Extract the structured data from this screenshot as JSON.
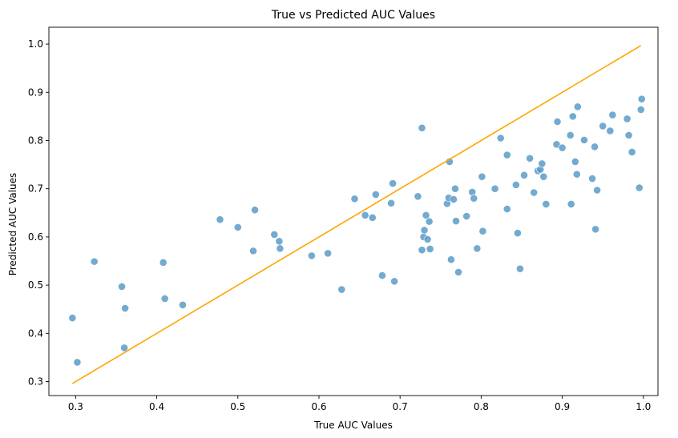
{
  "chart_data": {
    "type": "scatter",
    "title": "True vs Predicted AUC Values",
    "xlabel": "True AUC Values",
    "ylabel": "Predicted AUC Values",
    "xlim": [
      0.267,
      1.018
    ],
    "ylim": [
      0.271,
      1.035
    ],
    "xticks": [
      0.3,
      0.4,
      0.5,
      0.6,
      0.7,
      0.8,
      0.9,
      1.0
    ],
    "yticks": [
      0.3,
      0.4,
      0.5,
      0.6,
      0.7,
      0.8,
      0.9,
      1.0
    ],
    "xtick_labels": [
      "0.3",
      "0.4",
      "0.5",
      "0.6",
      "0.7",
      "0.8",
      "0.9",
      "1.0"
    ],
    "ytick_labels": [
      "0.3",
      "0.4",
      "0.5",
      "0.6",
      "0.7",
      "0.8",
      "0.9",
      "1.0"
    ],
    "grid": false,
    "point_color": "#5b9bc8",
    "line_color": "#ffa500",
    "reference_line": {
      "x": [
        0.296,
        0.997
      ],
      "y": [
        0.296,
        0.997
      ]
    },
    "points": [
      {
        "x": 0.296,
        "y": 0.432
      },
      {
        "x": 0.302,
        "y": 0.34
      },
      {
        "x": 0.323,
        "y": 0.549
      },
      {
        "x": 0.357,
        "y": 0.497
      },
      {
        "x": 0.36,
        "y": 0.37
      },
      {
        "x": 0.361,
        "y": 0.452
      },
      {
        "x": 0.408,
        "y": 0.547
      },
      {
        "x": 0.41,
        "y": 0.472
      },
      {
        "x": 0.432,
        "y": 0.459
      },
      {
        "x": 0.478,
        "y": 0.636
      },
      {
        "x": 0.5,
        "y": 0.62
      },
      {
        "x": 0.519,
        "y": 0.571
      },
      {
        "x": 0.521,
        "y": 0.656
      },
      {
        "x": 0.545,
        "y": 0.605
      },
      {
        "x": 0.551,
        "y": 0.591
      },
      {
        "x": 0.552,
        "y": 0.576
      },
      {
        "x": 0.591,
        "y": 0.561
      },
      {
        "x": 0.611,
        "y": 0.566
      },
      {
        "x": 0.628,
        "y": 0.491
      },
      {
        "x": 0.644,
        "y": 0.679
      },
      {
        "x": 0.657,
        "y": 0.645
      },
      {
        "x": 0.666,
        "y": 0.64
      },
      {
        "x": 0.67,
        "y": 0.688
      },
      {
        "x": 0.678,
        "y": 0.52
      },
      {
        "x": 0.689,
        "y": 0.67
      },
      {
        "x": 0.691,
        "y": 0.711
      },
      {
        "x": 0.693,
        "y": 0.508
      },
      {
        "x": 0.722,
        "y": 0.684
      },
      {
        "x": 0.727,
        "y": 0.573
      },
      {
        "x": 0.727,
        "y": 0.826
      },
      {
        "x": 0.729,
        "y": 0.6
      },
      {
        "x": 0.73,
        "y": 0.614
      },
      {
        "x": 0.732,
        "y": 0.645
      },
      {
        "x": 0.734,
        "y": 0.595
      },
      {
        "x": 0.736,
        "y": 0.632
      },
      {
        "x": 0.737,
        "y": 0.575
      },
      {
        "x": 0.758,
        "y": 0.669
      },
      {
        "x": 0.76,
        "y": 0.681
      },
      {
        "x": 0.761,
        "y": 0.756
      },
      {
        "x": 0.763,
        "y": 0.553
      },
      {
        "x": 0.766,
        "y": 0.678
      },
      {
        "x": 0.768,
        "y": 0.7
      },
      {
        "x": 0.769,
        "y": 0.633
      },
      {
        "x": 0.772,
        "y": 0.527
      },
      {
        "x": 0.782,
        "y": 0.643
      },
      {
        "x": 0.789,
        "y": 0.693
      },
      {
        "x": 0.791,
        "y": 0.68
      },
      {
        "x": 0.795,
        "y": 0.576
      },
      {
        "x": 0.801,
        "y": 0.725
      },
      {
        "x": 0.802,
        "y": 0.612
      },
      {
        "x": 0.817,
        "y": 0.7
      },
      {
        "x": 0.824,
        "y": 0.805
      },
      {
        "x": 0.832,
        "y": 0.77
      },
      {
        "x": 0.832,
        "y": 0.658
      },
      {
        "x": 0.843,
        "y": 0.708
      },
      {
        "x": 0.845,
        "y": 0.608
      },
      {
        "x": 0.848,
        "y": 0.534
      },
      {
        "x": 0.853,
        "y": 0.728
      },
      {
        "x": 0.86,
        "y": 0.763
      },
      {
        "x": 0.865,
        "y": 0.692
      },
      {
        "x": 0.87,
        "y": 0.737
      },
      {
        "x": 0.873,
        "y": 0.74
      },
      {
        "x": 0.875,
        "y": 0.752
      },
      {
        "x": 0.877,
        "y": 0.725
      },
      {
        "x": 0.88,
        "y": 0.668
      },
      {
        "x": 0.893,
        "y": 0.792
      },
      {
        "x": 0.894,
        "y": 0.839
      },
      {
        "x": 0.9,
        "y": 0.785
      },
      {
        "x": 0.91,
        "y": 0.811
      },
      {
        "x": 0.911,
        "y": 0.668
      },
      {
        "x": 0.913,
        "y": 0.85
      },
      {
        "x": 0.916,
        "y": 0.756
      },
      {
        "x": 0.918,
        "y": 0.73
      },
      {
        "x": 0.919,
        "y": 0.87
      },
      {
        "x": 0.927,
        "y": 0.801
      },
      {
        "x": 0.937,
        "y": 0.721
      },
      {
        "x": 0.94,
        "y": 0.787
      },
      {
        "x": 0.941,
        "y": 0.616
      },
      {
        "x": 0.943,
        "y": 0.697
      },
      {
        "x": 0.95,
        "y": 0.83
      },
      {
        "x": 0.959,
        "y": 0.82
      },
      {
        "x": 0.962,
        "y": 0.853
      },
      {
        "x": 0.98,
        "y": 0.845
      },
      {
        "x": 0.982,
        "y": 0.811
      },
      {
        "x": 0.986,
        "y": 0.776
      },
      {
        "x": 0.995,
        "y": 0.702
      },
      {
        "x": 0.997,
        "y": 0.864
      },
      {
        "x": 0.998,
        "y": 0.886
      }
    ]
  }
}
